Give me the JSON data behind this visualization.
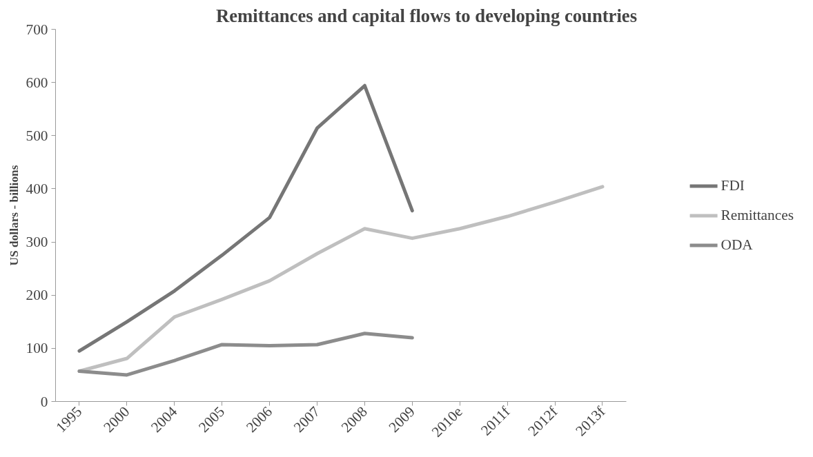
{
  "chart_data": {
    "type": "line",
    "title": "Remittances and capital flows to developing countries",
    "ylabel": "US dollars - billions",
    "categories": [
      "1995",
      "2000",
      "2004",
      "2005",
      "2006",
      "2007",
      "2008",
      "2009",
      "2010e",
      "2011f",
      "2012f",
      "2013f"
    ],
    "series": [
      {
        "name": "FDI",
        "color": "#767676",
        "values": [
          95,
          150,
          208,
          275,
          346,
          514,
          594,
          359,
          null,
          null,
          null,
          null
        ]
      },
      {
        "name": "Remittances",
        "color": "#bfbfbf",
        "values": [
          57,
          81,
          159,
          192,
          227,
          278,
          325,
          307,
          325,
          348,
          375,
          404
        ]
      },
      {
        "name": "ODA",
        "color": "#8c8c8c",
        "values": [
          57,
          50,
          77,
          107,
          105,
          107,
          128,
          120,
          null,
          null,
          null,
          null
        ]
      }
    ],
    "ylim": [
      0,
      700
    ],
    "yticks": [
      0,
      100,
      200,
      300,
      400,
      500,
      600,
      700
    ],
    "grid": false,
    "legend": "right",
    "marker": "none",
    "line_style": "solid"
  }
}
